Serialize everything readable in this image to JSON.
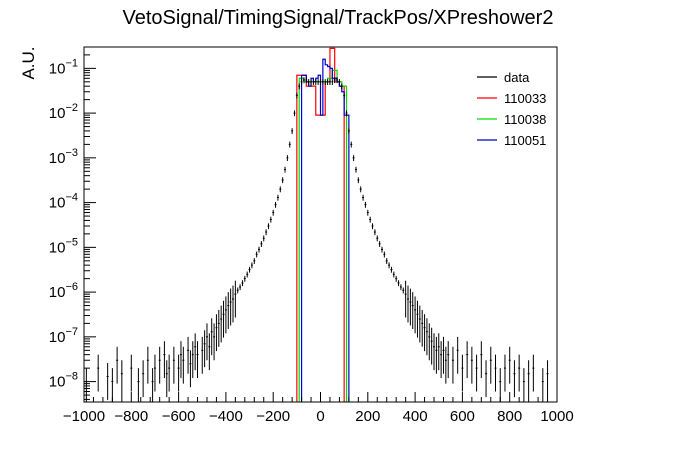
{
  "chart_data": {
    "type": "line",
    "title": "VetoSignal/TimingSignal/TrackPos/XPreshower2",
    "xlabel": "",
    "ylabel": "A.U.",
    "xlim": [
      -1000,
      1000
    ],
    "ylog": true,
    "ylim": [
      3.5e-09,
      0.3
    ],
    "grid": false,
    "legend_position": "top-right",
    "x_ticks": [
      -1000,
      -800,
      -600,
      -400,
      -200,
      0,
      200,
      400,
      600,
      800,
      1000
    ],
    "y_tick_exponents": [
      -8,
      -7,
      -6,
      -5,
      -4,
      -3,
      -2,
      -1
    ],
    "series": [
      {
        "name": "data",
        "color": "#000000",
        "style": "points-with-errors",
        "points": [
          [
            -990,
            1e-08
          ],
          [
            -940,
            2e-08
          ],
          [
            -900,
            1.3e-08
          ],
          [
            -880,
            1e-08
          ],
          [
            -860,
            3e-08
          ],
          [
            -840,
            1.5e-08
          ],
          [
            -800,
            2e-08
          ],
          [
            -770,
            1e-08
          ],
          [
            -750,
            1.5e-08
          ],
          [
            -730,
            3e-08
          ],
          [
            -710,
            1e-08
          ],
          [
            -700,
            2e-08
          ],
          [
            -680,
            3e-08
          ],
          [
            -660,
            4e-08
          ],
          [
            -650,
            1.5e-08
          ],
          [
            -640,
            2e-08
          ],
          [
            -620,
            3e-08
          ],
          [
            -600,
            2e-08
          ],
          [
            -590,
            4e-08
          ],
          [
            -580,
            3e-08
          ],
          [
            -560,
            5e-08
          ],
          [
            -550,
            2.5e-08
          ],
          [
            -540,
            4e-08
          ],
          [
            -530,
            6e-08
          ],
          [
            -520,
            4e-08
          ],
          [
            -500,
            5e-08
          ],
          [
            -490,
            7e-08
          ],
          [
            -480,
            1e-07
          ],
          [
            -470,
            6e-08
          ],
          [
            -460,
            1.3e-07
          ],
          [
            -450,
            1e-07
          ],
          [
            -440,
            1.6e-07
          ],
          [
            -430,
            2e-07
          ],
          [
            -420,
            2.5e-07
          ],
          [
            -410,
            3.2e-07
          ],
          [
            -400,
            4e-07
          ],
          [
            -390,
            5e-07
          ],
          [
            -380,
            6e-07
          ],
          [
            -370,
            7e-07
          ],
          [
            -360,
            9e-07
          ],
          [
            -350,
            1.1e-06
          ],
          [
            -340,
            1.3e-06
          ],
          [
            -330,
            1.6e-06
          ],
          [
            -320,
            2e-06
          ],
          [
            -310,
            2.5e-06
          ],
          [
            -300,
            3.2e-06
          ],
          [
            -290,
            4e-06
          ],
          [
            -280,
            5e-06
          ],
          [
            -270,
            7e-06
          ],
          [
            -260,
            9e-06
          ],
          [
            -250,
            1.2e-05
          ],
          [
            -240,
            1.6e-05
          ],
          [
            -230,
            2.2e-05
          ],
          [
            -220,
            3e-05
          ],
          [
            -210,
            4.2e-05
          ],
          [
            -200,
            6e-05
          ],
          [
            -190,
            9e-05
          ],
          [
            -180,
            0.00013
          ],
          [
            -170,
            0.0002
          ],
          [
            -160,
            0.00032
          ],
          [
            -150,
            0.00055
          ],
          [
            -140,
            0.001
          ],
          [
            -130,
            0.002
          ],
          [
            -120,
            0.004
          ],
          [
            -110,
            0.01
          ],
          [
            -100,
            0.025
          ],
          [
            -90,
            0.04
          ],
          [
            -80,
            0.05
          ],
          [
            -70,
            0.055
          ],
          [
            -60,
            0.055
          ],
          [
            -50,
            0.05
          ],
          [
            -40,
            0.05
          ],
          [
            -30,
            0.05
          ],
          [
            -20,
            0.05
          ],
          [
            -10,
            0.05
          ],
          [
            0,
            0.05
          ],
          [
            10,
            0.05
          ],
          [
            20,
            0.05
          ],
          [
            30,
            0.05
          ],
          [
            40,
            0.05
          ],
          [
            50,
            0.05
          ],
          [
            60,
            0.055
          ],
          [
            70,
            0.055
          ],
          [
            80,
            0.05
          ],
          [
            90,
            0.04
          ],
          [
            100,
            0.025
          ],
          [
            110,
            0.01
          ],
          [
            120,
            0.004
          ],
          [
            130,
            0.002
          ],
          [
            140,
            0.001
          ],
          [
            150,
            0.00055
          ],
          [
            160,
            0.00032
          ],
          [
            170,
            0.0002
          ],
          [
            180,
            0.00013
          ],
          [
            190,
            9e-05
          ],
          [
            200,
            6e-05
          ],
          [
            210,
            4.2e-05
          ],
          [
            220,
            3e-05
          ],
          [
            230,
            2.2e-05
          ],
          [
            240,
            1.6e-05
          ],
          [
            250,
            1.2e-05
          ],
          [
            260,
            9e-06
          ],
          [
            270,
            7e-06
          ],
          [
            280,
            5e-06
          ],
          [
            290,
            4e-06
          ],
          [
            300,
            3.2e-06
          ],
          [
            310,
            2.5e-06
          ],
          [
            320,
            2e-06
          ],
          [
            330,
            1.6e-06
          ],
          [
            340,
            1.3e-06
          ],
          [
            350,
            1.1e-06
          ],
          [
            360,
            9e-07
          ],
          [
            370,
            7e-07
          ],
          [
            380,
            6e-07
          ],
          [
            390,
            5e-07
          ],
          [
            400,
            4e-07
          ],
          [
            410,
            3.2e-07
          ],
          [
            420,
            2.5e-07
          ],
          [
            430,
            2e-07
          ],
          [
            440,
            1.6e-07
          ],
          [
            450,
            1.3e-07
          ],
          [
            460,
            1e-07
          ],
          [
            470,
            8e-08
          ],
          [
            480,
            6e-08
          ],
          [
            490,
            5e-08
          ],
          [
            500,
            6e-08
          ],
          [
            510,
            4e-08
          ],
          [
            520,
            5e-08
          ],
          [
            530,
            3e-08
          ],
          [
            540,
            4e-08
          ],
          [
            560,
            3e-08
          ],
          [
            580,
            5e-08
          ],
          [
            600,
            2e-08
          ],
          [
            620,
            4e-08
          ],
          [
            640,
            3e-08
          ],
          [
            660,
            2e-08
          ],
          [
            680,
            4e-08
          ],
          [
            700,
            1.5e-08
          ],
          [
            720,
            3e-08
          ],
          [
            740,
            2e-08
          ],
          [
            760,
            1e-08
          ],
          [
            780,
            2e-08
          ],
          [
            800,
            3e-08
          ],
          [
            820,
            1.5e-08
          ],
          [
            840,
            2e-08
          ],
          [
            860,
            1e-08
          ],
          [
            880,
            1.5e-08
          ],
          [
            900,
            2e-08
          ],
          [
            940,
            1e-08
          ],
          [
            960,
            1.5e-08
          ]
        ]
      },
      {
        "name": "110033",
        "color": "#ff0000",
        "style": "histogram",
        "bins": [
          [
            -100,
            -80,
            0.07
          ],
          [
            -80,
            -60,
            0.07
          ],
          [
            -60,
            -40,
            0.04
          ],
          [
            -40,
            -20,
            0.04
          ],
          [
            -20,
            0,
            0.009
          ],
          [
            0,
            20,
            0.009
          ],
          [
            20,
            40,
            0.05
          ],
          [
            40,
            60,
            0.28
          ],
          [
            60,
            80,
            0.05
          ],
          [
            80,
            100,
            0.04
          ]
        ]
      },
      {
        "name": "110038",
        "color": "#00dd00",
        "style": "histogram",
        "bins": [
          [
            -90,
            -70,
            0.06
          ],
          [
            -70,
            -50,
            0.05
          ],
          [
            -50,
            -30,
            0.05
          ],
          [
            -30,
            -10,
            0.05
          ],
          [
            -10,
            10,
            0.05
          ],
          [
            10,
            30,
            0.05
          ],
          [
            30,
            50,
            0.06
          ],
          [
            50,
            70,
            0.09
          ],
          [
            70,
            90,
            0.05
          ],
          [
            90,
            110,
            0.04
          ]
        ]
      },
      {
        "name": "110051",
        "color": "#0000cc",
        "style": "histogram",
        "bins": [
          [
            -80,
            -70,
            0.07
          ],
          [
            -70,
            -60,
            0.07
          ],
          [
            -60,
            -50,
            0.05
          ],
          [
            -50,
            -40,
            0.04
          ],
          [
            -40,
            -30,
            0.06
          ],
          [
            -30,
            -20,
            0.05
          ],
          [
            -20,
            -10,
            0.06
          ],
          [
            -10,
            0,
            0.07
          ],
          [
            0,
            10,
            0.009
          ],
          [
            10,
            20,
            0.16
          ],
          [
            20,
            30,
            0.12
          ],
          [
            30,
            40,
            0.11
          ],
          [
            40,
            50,
            0.1
          ],
          [
            50,
            60,
            0.06
          ],
          [
            60,
            70,
            0.06
          ],
          [
            70,
            80,
            0.05
          ],
          [
            80,
            90,
            0.04
          ],
          [
            90,
            100,
            0.03
          ],
          [
            100,
            110,
            0.009
          ],
          [
            110,
            120,
            0.009
          ]
        ]
      }
    ]
  }
}
